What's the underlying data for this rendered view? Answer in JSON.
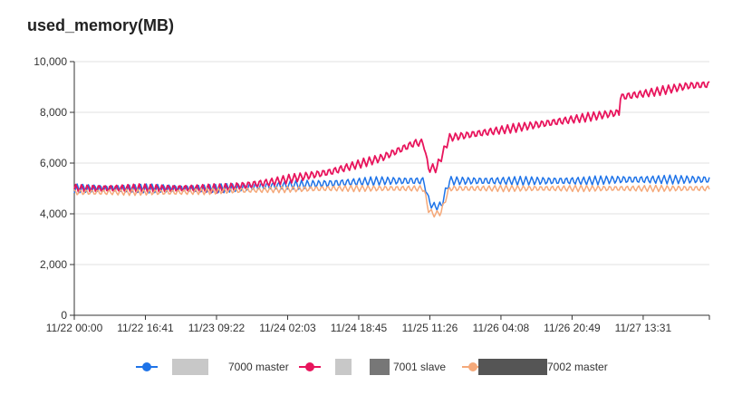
{
  "chart_data": {
    "type": "line",
    "title": "used_memory(MB)",
    "xlabel": "",
    "ylabel": "",
    "ylim": [
      0,
      10000
    ],
    "yticks": [
      0,
      2000,
      4000,
      6000,
      8000,
      10000
    ],
    "ytick_labels": [
      "0",
      "2,000",
      "4,000",
      "6,000",
      "8,000",
      "10,000"
    ],
    "x_tick_labels": [
      "11/22 00:00",
      "11/22 16:41",
      "11/23 09:22",
      "11/24 02:03",
      "11/24 18:45",
      "11/25 11:26",
      "11/26 04:08",
      "11/26 20:49",
      "11/27 13:31"
    ],
    "grid": "horizontal",
    "legend_position": "bottom",
    "x_hours": [
      0,
      12,
      24,
      34,
      46,
      60,
      72,
      80,
      82,
      83,
      84,
      85,
      86,
      88,
      96,
      108,
      120,
      128,
      128.1,
      136,
      144,
      149
    ],
    "series": [
      {
        "name": "7000 master",
        "color": "#1e73e8",
        "values": [
          5000,
          5000,
          5000,
          5000,
          5100,
          5200,
          5300,
          5300,
          5300,
          4600,
          4300,
          4300,
          4300,
          5300,
          5300,
          5300,
          5300,
          5350,
          5350,
          5350,
          5350,
          5350
        ]
      },
      {
        "name": "7001 slave",
        "color": "#e8145c",
        "values": [
          5000,
          5000,
          5000,
          5000,
          5250,
          5650,
          6200,
          6800,
          6800,
          5800,
          5800,
          5800,
          6200,
          7000,
          7200,
          7500,
          7800,
          8000,
          8600,
          8800,
          9050,
          9100
        ]
      },
      {
        "name": "7002 master",
        "color": "#f5a97a",
        "values": [
          4850,
          4850,
          4850,
          4900,
          4950,
          5000,
          5000,
          5000,
          5000,
          4200,
          4000,
          4000,
          4050,
          5000,
          5000,
          5000,
          5000,
          5000,
          5000,
          5000,
          5000,
          5000
        ]
      }
    ],
    "noise_amplitude": [
      180,
      180,
      130
    ]
  }
}
